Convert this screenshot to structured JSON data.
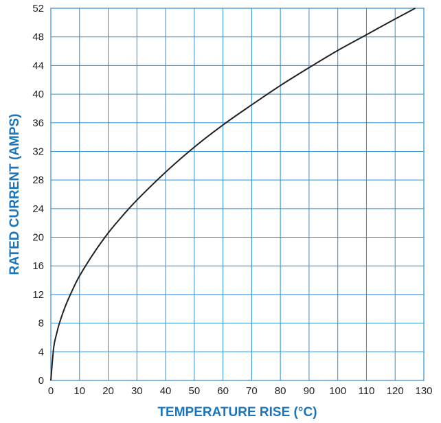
{
  "chart_data": {
    "type": "line",
    "xlabel": "TEMPERATURE RISE (°C)",
    "ylabel": "RATED CURRENT (AMPS)",
    "xlim": [
      0,
      130
    ],
    "ylim": [
      0,
      52
    ],
    "x_ticks": [
      0,
      10,
      20,
      30,
      40,
      50,
      60,
      70,
      80,
      90,
      100,
      110,
      120,
      130
    ],
    "y_ticks": [
      0,
      4,
      8,
      12,
      16,
      20,
      24,
      28,
      32,
      36,
      40,
      44,
      48,
      52
    ],
    "grid": true,
    "series": [
      {
        "color": "#231f20",
        "x": [
          0,
          1,
          2,
          3,
          5,
          7.5,
          10,
          15,
          20,
          25,
          30,
          40,
          50,
          60,
          70,
          80,
          90,
          100,
          110,
          120,
          127
        ],
        "y": [
          0,
          4.6,
          6.5,
          8,
          10.3,
          12.6,
          14.6,
          17.8,
          20.6,
          23,
          25.2,
          29.1,
          32.6,
          35.7,
          38.5,
          41.2,
          43.7,
          46.1,
          48.3,
          50.5,
          52
        ]
      }
    ]
  },
  "colors": {
    "grid": "#2e8fd1",
    "axis_title": "#1a75bc",
    "curve": "#231f20"
  }
}
